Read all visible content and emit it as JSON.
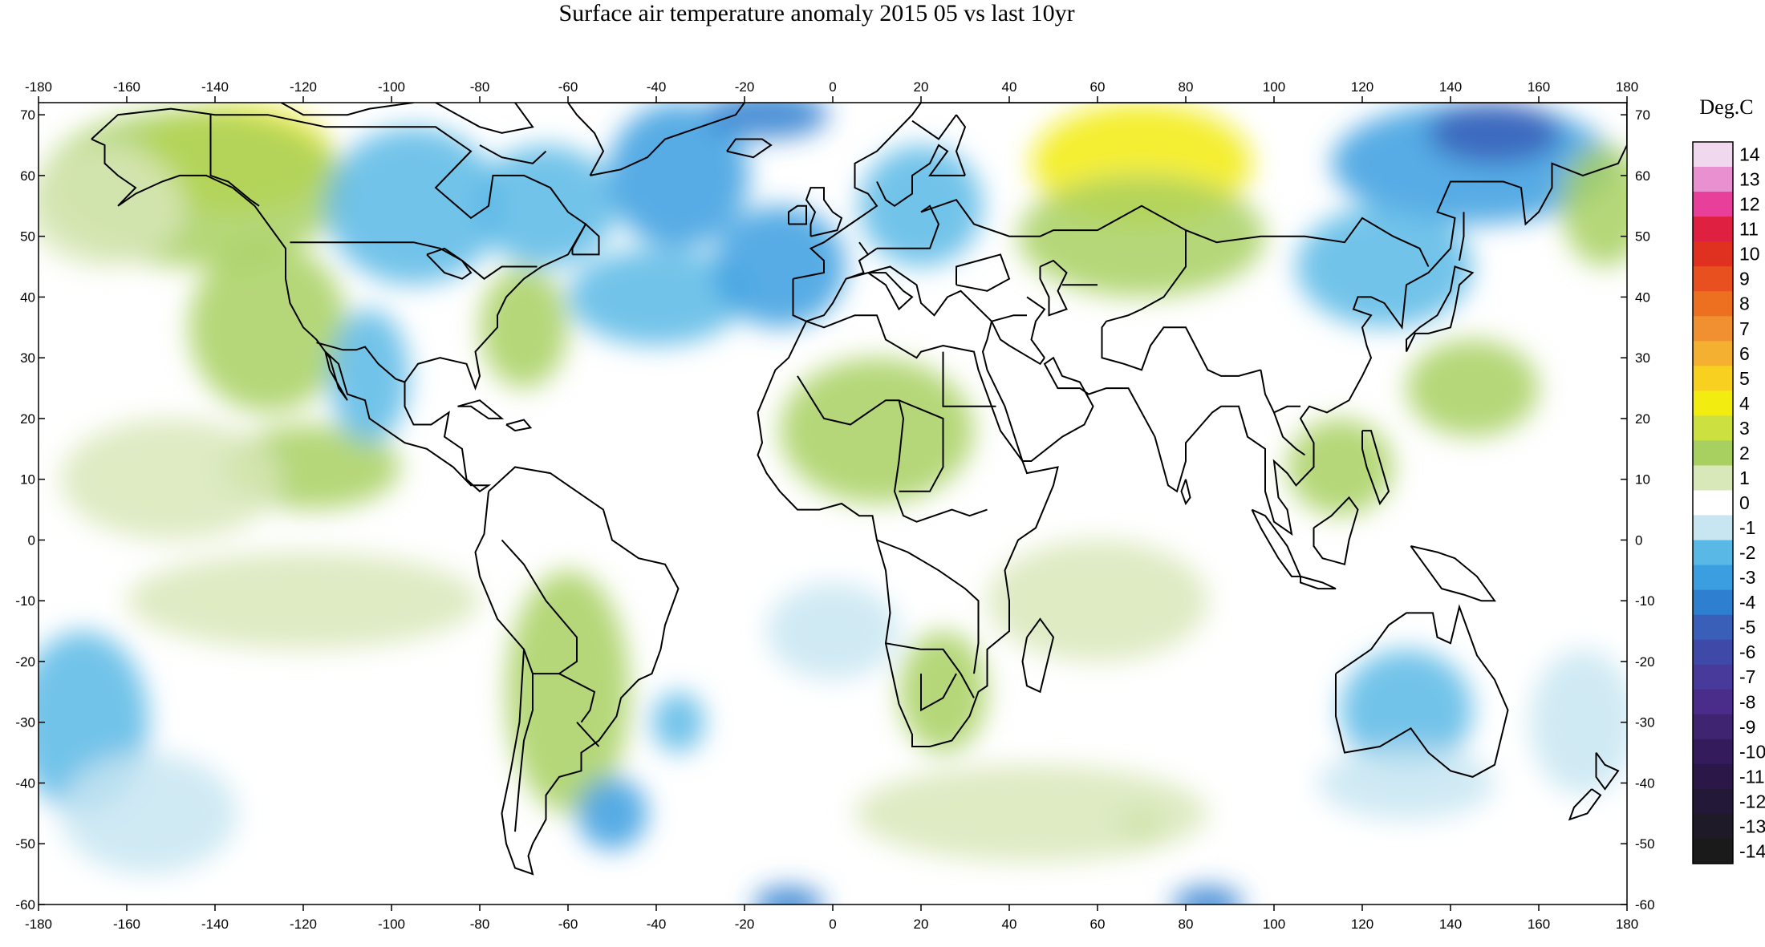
{
  "title": "Surface air temperature anomaly 2015 05 vs last 10yr",
  "colorbar": {
    "unit": "Deg.C",
    "levels": [
      14,
      13,
      12,
      11,
      10,
      9,
      8,
      7,
      6,
      5,
      4,
      3,
      2,
      1,
      0,
      -1,
      -2,
      -3,
      -4,
      -5,
      -6,
      -7,
      -8,
      -9,
      -10,
      -11,
      -12,
      -13,
      -14
    ],
    "colors": {
      "14": "#f0d8ee",
      "13": "#e890d0",
      "12": "#e8409a",
      "11": "#e02040",
      "10": "#e03020",
      "9": "#e85020",
      "8": "#ec7020",
      "7": "#f09030",
      "6": "#f4b030",
      "5": "#f8d020",
      "4": "#f2ec10",
      "3": "#cce040",
      "2": "#a8d060",
      "1": "#d8e8b8",
      "0": "#ffffff",
      "-1": "#c8e6f2",
      "-2": "#5ab8e6",
      "-3": "#3a9ee0",
      "-4": "#2f7fd0",
      "-5": "#3a5fb8",
      "-6": "#3f4aa8",
      "-7": "#473a9a",
      "-8": "#4a2c8a",
      "-9": "#3f2472",
      "-10": "#341c5c",
      "-11": "#2b1848",
      "-12": "#241838",
      "-13": "#1f1a28",
      "-14": "#1a1a1a"
    }
  },
  "map": {
    "projection": "equirectangular",
    "lon_range": [
      -180,
      180
    ],
    "lat_range": [
      -60,
      72
    ],
    "lon_ticks": [
      -180,
      -160,
      -140,
      -120,
      -100,
      -80,
      -60,
      -40,
      -20,
      0,
      20,
      40,
      60,
      80,
      100,
      120,
      140,
      160,
      180
    ],
    "lat_ticks": [
      70,
      60,
      50,
      40,
      30,
      20,
      10,
      0,
      -10,
      -20,
      -30,
      -40,
      -50,
      -60
    ],
    "background": "#ffffff",
    "coastline_color": "#000000"
  },
  "anomaly_regions": [
    {
      "lon": -135,
      "lat": 63,
      "rlon": 22,
      "rlat": 9,
      "value": 4
    },
    {
      "lon": -145,
      "lat": 58,
      "rlon": 35,
      "rlat": 13,
      "value": 2
    },
    {
      "lon": -165,
      "lat": 55,
      "rlon": 18,
      "rlat": 10,
      "value": 1
    },
    {
      "lon": -128,
      "lat": 35,
      "rlon": 18,
      "rlat": 14,
      "value": 2
    },
    {
      "lon": -118,
      "lat": 12,
      "rlon": 20,
      "rlat": 7,
      "value": 2
    },
    {
      "lon": -150,
      "lat": 10,
      "rlon": 25,
      "rlat": 10,
      "value": 1
    },
    {
      "lon": -95,
      "lat": 55,
      "rlon": 20,
      "rlat": 13,
      "value": -2
    },
    {
      "lon": -65,
      "lat": 55,
      "rlon": 16,
      "rlat": 10,
      "value": -2
    },
    {
      "lon": -70,
      "lat": 35,
      "rlon": 10,
      "rlat": 10,
      "value": 2
    },
    {
      "lon": -105,
      "lat": 27,
      "rlon": 9,
      "rlat": 11,
      "value": -2
    },
    {
      "lon": -35,
      "lat": 60,
      "rlon": 16,
      "rlat": 12,
      "value": -3
    },
    {
      "lon": -15,
      "lat": 70,
      "rlon": 14,
      "rlat": 4,
      "value": -4
    },
    {
      "lon": -40,
      "lat": 40,
      "rlon": 20,
      "rlat": 8,
      "value": -2
    },
    {
      "lon": -12,
      "lat": 45,
      "rlon": 15,
      "rlat": 10,
      "value": -3
    },
    {
      "lon": 20,
      "lat": 55,
      "rlon": 14,
      "rlat": 10,
      "value": -2
    },
    {
      "lon": 70,
      "lat": 62,
      "rlon": 25,
      "rlat": 10,
      "value": 4
    },
    {
      "lon": 70,
      "lat": 50,
      "rlon": 28,
      "rlat": 10,
      "value": 2
    },
    {
      "lon": 145,
      "lat": 62,
      "rlon": 32,
      "rlat": 10,
      "value": -3
    },
    {
      "lon": 150,
      "lat": 67,
      "rlon": 15,
      "rlat": 5,
      "value": -5
    },
    {
      "lon": 125,
      "lat": 45,
      "rlon": 20,
      "rlat": 10,
      "value": -2
    },
    {
      "lon": 175,
      "lat": 55,
      "rlon": 10,
      "rlat": 10,
      "value": 2
    },
    {
      "lon": 145,
      "lat": 25,
      "rlon": 15,
      "rlat": 8,
      "value": 2
    },
    {
      "lon": 10,
      "lat": 18,
      "rlon": 22,
      "rlat": 12,
      "value": 2
    },
    {
      "lon": 115,
      "lat": 12,
      "rlon": 12,
      "rlat": 8,
      "value": 2
    },
    {
      "lon": -60,
      "lat": -25,
      "rlon": 14,
      "rlat": 20,
      "value": 2
    },
    {
      "lon": 25,
      "lat": -25,
      "rlon": 10,
      "rlat": 10,
      "value": 2
    },
    {
      "lon": -170,
      "lat": -30,
      "rlon": 15,
      "rlat": 15,
      "value": -2
    },
    {
      "lon": -155,
      "lat": -45,
      "rlon": 20,
      "rlat": 10,
      "value": -1
    },
    {
      "lon": -50,
      "lat": -45,
      "rlon": 8,
      "rlat": 6,
      "value": -3
    },
    {
      "lon": -35,
      "lat": -30,
      "rlon": 6,
      "rlat": 5,
      "value": -2
    },
    {
      "lon": 130,
      "lat": -28,
      "rlon": 15,
      "rlat": 10,
      "value": -2
    },
    {
      "lon": 130,
      "lat": -40,
      "rlon": 20,
      "rlat": 6,
      "value": -1
    },
    {
      "lon": 170,
      "lat": -30,
      "rlon": 12,
      "rlat": 12,
      "value": -1
    },
    {
      "lon": -10,
      "lat": -60,
      "rlon": 8,
      "rlat": 3,
      "value": -4
    },
    {
      "lon": 85,
      "lat": -60,
      "rlon": 8,
      "rlat": 3,
      "value": -4
    },
    {
      "lon": 70,
      "lat": -47,
      "rlon": 5,
      "rlat": 3,
      "value": 2
    },
    {
      "lon": 45,
      "lat": -45,
      "rlon": 40,
      "rlat": 8,
      "value": 1
    },
    {
      "lon": 60,
      "lat": -10,
      "rlon": 25,
      "rlat": 10,
      "value": 1
    },
    {
      "lon": -120,
      "lat": -10,
      "rlon": 40,
      "rlat": 8,
      "value": 1
    },
    {
      "lon": 0,
      "lat": -15,
      "rlon": 15,
      "rlat": 8,
      "value": -1
    }
  ]
}
